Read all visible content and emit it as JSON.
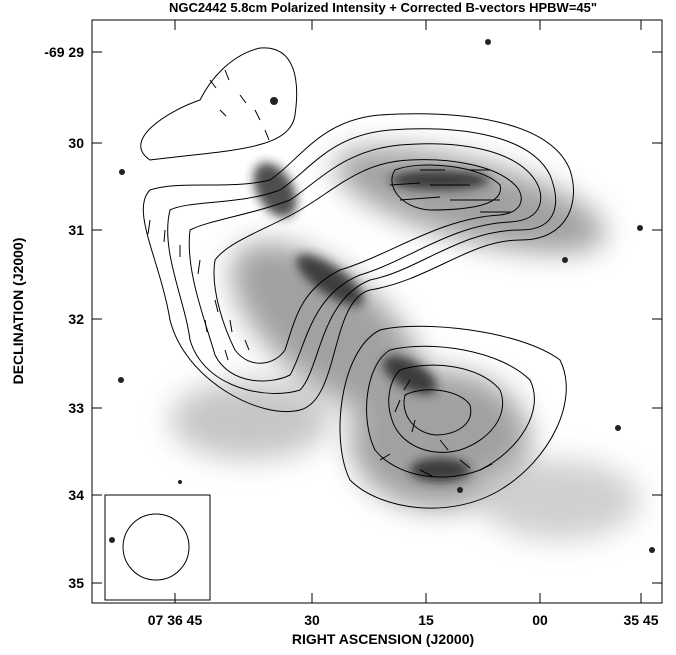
{
  "figure": {
    "title": "NGC2442   5.8cm   Polarized Intensity + Corrected B-vectors  HPBW=45\"",
    "x_axis": {
      "label": "RIGHT ASCENSION (J2000)",
      "tick_labels": [
        "07 36 45",
        "30",
        "15",
        "00",
        "35 45"
      ]
    },
    "y_axis": {
      "label": "DECLINATION (J2000)",
      "tick_labels": [
        "-69 29",
        "30",
        "31",
        "32",
        "33",
        "34",
        "35"
      ]
    }
  }
}
